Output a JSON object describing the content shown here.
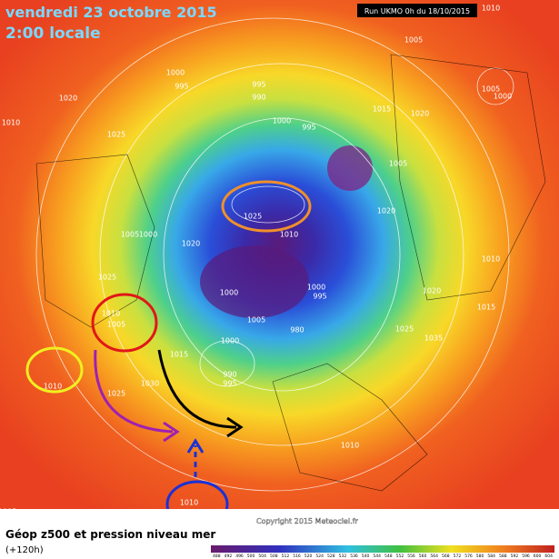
{
  "header": {
    "date": "vendredi 23 octobre 2015",
    "time": "2:00 locale",
    "run": "Run UKMO 0h du 18/10/2015"
  },
  "map": {
    "isobar_labels": [
      "1005",
      "1010",
      "1005",
      "1000",
      "1000",
      "995",
      "995",
      "990",
      "1000",
      "995",
      "1015",
      "1020",
      "1010",
      "1020",
      "1025",
      "1005",
      "1020",
      "1025",
      "1010",
      "1005",
      "1000",
      "1020",
      "1025",
      "1010",
      "1020",
      "1000",
      "1000",
      "995",
      "1005",
      "980",
      "1015",
      "1000",
      "990",
      "995",
      "1030",
      "1025",
      "1010",
      "1010",
      "1005",
      "1010",
      "1010",
      "1005",
      "1025",
      "1035",
      "1015"
    ]
  },
  "footer": {
    "title": "Géop z500 et pression niveau mer",
    "lead": "(+120h)",
    "copyright": "Copyright 2015 Meteociel.fr",
    "scale": [
      "488",
      "492",
      "496",
      "500",
      "504",
      "508",
      "512",
      "516",
      "520",
      "524",
      "528",
      "532",
      "536",
      "540",
      "544",
      "548",
      "552",
      "556",
      "560",
      "564",
      "568",
      "572",
      "576",
      "580",
      "584",
      "588",
      "592",
      "596",
      "600",
      "604"
    ]
  }
}
